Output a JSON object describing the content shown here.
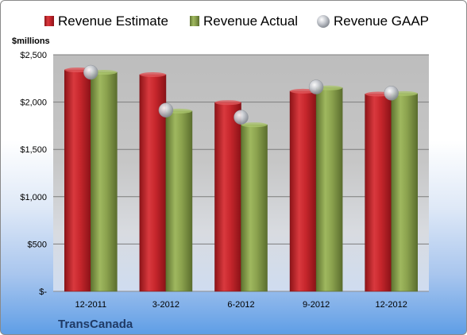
{
  "chart_data": {
    "type": "bar",
    "title": "",
    "ylabel": "$millions",
    "xlabel": "",
    "company": "TransCanada",
    "categories": [
      "12-2011",
      "3-2012",
      "6-2012",
      "9-2012",
      "12-2012"
    ],
    "series": [
      {
        "name": "Revenue Estimate",
        "kind": "bar",
        "color": "#c0272d",
        "values": [
          2340,
          2290,
          1995,
          2115,
          2085
        ]
      },
      {
        "name": "Revenue Actual",
        "kind": "bar",
        "color": "#8fa64f",
        "values": [
          2315,
          1905,
          1760,
          2150,
          2090
        ]
      },
      {
        "name": "Revenue GAAP",
        "kind": "marker",
        "color": "#b0b4bb",
        "values": [
          2315,
          1915,
          1840,
          2160,
          2095
        ]
      }
    ],
    "y_ticks": [
      {
        "value": 0,
        "label": "$-"
      },
      {
        "value": 500,
        "label": "$500"
      },
      {
        "value": 1000,
        "label": "$1,000"
      },
      {
        "value": 1500,
        "label": "$1,500"
      },
      {
        "value": 2000,
        "label": "$2,000"
      },
      {
        "value": 2500,
        "label": "$2,500"
      }
    ],
    "ylim": [
      0,
      2500
    ],
    "grid": true,
    "legend_position": "top"
  }
}
